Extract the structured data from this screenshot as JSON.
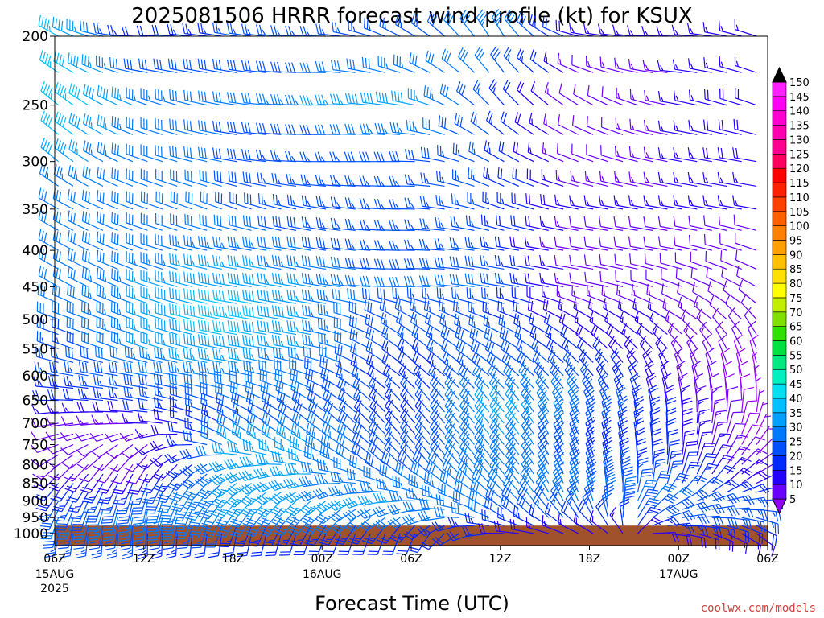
{
  "chart_data": {
    "type": "wind-barb-profile",
    "title": "2025081506 HRRR forecast wind profile (kt) for KSUX",
    "xlabel": "Forecast Time (UTC)",
    "ylabel": "",
    "x_ticks": [
      {
        "label": "06Z",
        "sub": [
          "15AUG",
          "2025"
        ],
        "hour": 0
      },
      {
        "label": "12Z",
        "sub": [],
        "hour": 6
      },
      {
        "label": "18Z",
        "sub": [],
        "hour": 12
      },
      {
        "label": "00Z",
        "sub": [
          "16AUG"
        ],
        "hour": 18
      },
      {
        "label": "06Z",
        "sub": [],
        "hour": 24
      },
      {
        "label": "12Z",
        "sub": [],
        "hour": 30
      },
      {
        "label": "18Z",
        "sub": [],
        "hour": 36
      },
      {
        "label": "00Z",
        "sub": [
          "17AUG"
        ],
        "hour": 42
      },
      {
        "label": "06Z",
        "sub": [],
        "hour": 48
      }
    ],
    "x_range_hours": [
      0,
      48
    ],
    "y_axis": "pressure (hPa), log scale",
    "y_range": [
      200,
      1000
    ],
    "y_ticks": [
      200,
      250,
      300,
      350,
      400,
      450,
      500,
      550,
      600,
      650,
      700,
      750,
      800,
      850,
      900,
      950,
      1000
    ],
    "ground_pressure": 975,
    "ground_color": "#a0522d",
    "colorbar": {
      "units": "kt",
      "levels": [
        5,
        10,
        15,
        20,
        25,
        30,
        35,
        40,
        45,
        50,
        55,
        60,
        65,
        70,
        75,
        80,
        85,
        90,
        95,
        100,
        105,
        110,
        115,
        120,
        125,
        130,
        135,
        140,
        145,
        150
      ],
      "colors": [
        "#9400ff",
        "#6a00ff",
        "#2400ff",
        "#0028ff",
        "#0050ff",
        "#0078ff",
        "#00a0ff",
        "#00c0ff",
        "#00e0f0",
        "#00f0c0",
        "#00e880",
        "#00e040",
        "#30e000",
        "#80e000",
        "#c0f000",
        "#ffff00",
        "#ffe000",
        "#ffc000",
        "#ffa000",
        "#ff8000",
        "#ff6000",
        "#ff4000",
        "#ff2000",
        "#ff0000",
        "#ff0060",
        "#ff0090",
        "#ff00b0",
        "#ff00d0",
        "#ff00f0",
        "#ff20ff"
      ]
    },
    "wind": {
      "levels_hPa": [
        200,
        250,
        300,
        350,
        400,
        450,
        500,
        550,
        600,
        650,
        700,
        750,
        800,
        850,
        900,
        950,
        1000
      ],
      "key_hours": [
        0,
        6,
        12,
        18,
        24,
        30,
        36,
        42,
        48
      ],
      "speed_kt": [
        [
          45,
          20,
          25,
          25,
          25,
          35,
          15,
          15,
          15
        ],
        [
          45,
          35,
          30,
          35,
          40,
          25,
          10,
          15,
          20
        ],
        [
          40,
          30,
          30,
          25,
          30,
          25,
          10,
          15,
          20
        ],
        [
          30,
          30,
          30,
          25,
          25,
          25,
          15,
          15,
          15
        ],
        [
          30,
          30,
          35,
          30,
          25,
          25,
          10,
          10,
          10
        ],
        [
          30,
          35,
          40,
          35,
          30,
          30,
          10,
          10,
          10
        ],
        [
          30,
          35,
          45,
          35,
          25,
          25,
          15,
          15,
          10
        ],
        [
          25,
          35,
          40,
          35,
          25,
          30,
          20,
          15,
          10
        ],
        [
          25,
          30,
          35,
          30,
          20,
          30,
          25,
          15,
          5
        ],
        [
          20,
          25,
          30,
          30,
          25,
          35,
          30,
          15,
          5
        ],
        [
          10,
          15,
          25,
          30,
          20,
          40,
          30,
          20,
          5
        ],
        [
          10,
          10,
          35,
          35,
          25,
          35,
          25,
          20,
          5
        ],
        [
          15,
          10,
          35,
          35,
          25,
          35,
          25,
          20,
          10
        ],
        [
          20,
          25,
          35,
          35,
          30,
          35,
          30,
          25,
          15
        ],
        [
          25,
          30,
          35,
          35,
          35,
          30,
          30,
          30,
          25
        ],
        [
          30,
          35,
          30,
          30,
          30,
          30,
          25,
          30,
          25
        ],
        [
          25,
          25,
          20,
          20,
          20,
          20,
          15,
          20,
          15
        ]
      ],
      "direction_deg": [
        [
          300,
          270,
          280,
          270,
          300,
          330,
          280,
          270,
          290
        ],
        [
          310,
          290,
          280,
          270,
          280,
          320,
          300,
          280,
          290
        ],
        [
          310,
          290,
          280,
          270,
          270,
          300,
          290,
          280,
          280
        ],
        [
          300,
          290,
          290,
          280,
          270,
          290,
          280,
          280,
          280
        ],
        [
          300,
          290,
          280,
          280,
          270,
          280,
          280,
          280,
          290
        ],
        [
          300,
          290,
          280,
          280,
          270,
          280,
          280,
          290,
          300
        ],
        [
          290,
          290,
          280,
          280,
          300,
          290,
          300,
          300,
          320
        ],
        [
          290,
          290,
          280,
          280,
          310,
          300,
          310,
          320,
          340
        ],
        [
          280,
          280,
          280,
          290,
          310,
          310,
          320,
          340,
          350
        ],
        [
          270,
          280,
          290,
          300,
          320,
          320,
          330,
          350,
          360
        ],
        [
          260,
          270,
          300,
          310,
          320,
          320,
          340,
          360,
          20
        ],
        [
          250,
          230,
          300,
          300,
          320,
          320,
          340,
          360,
          40
        ],
        [
          230,
          210,
          250,
          290,
          320,
          320,
          340,
          10,
          60
        ],
        [
          220,
          200,
          230,
          260,
          300,
          320,
          340,
          20,
          70
        ],
        [
          210,
          190,
          220,
          230,
          270,
          310,
          340,
          60,
          90
        ],
        [
          200,
          190,
          210,
          220,
          240,
          300,
          330,
          80,
          110
        ],
        [
          190,
          180,
          190,
          200,
          200,
          270,
          300,
          100,
          130
        ]
      ]
    }
  },
  "credit": "coolwx.com/models"
}
